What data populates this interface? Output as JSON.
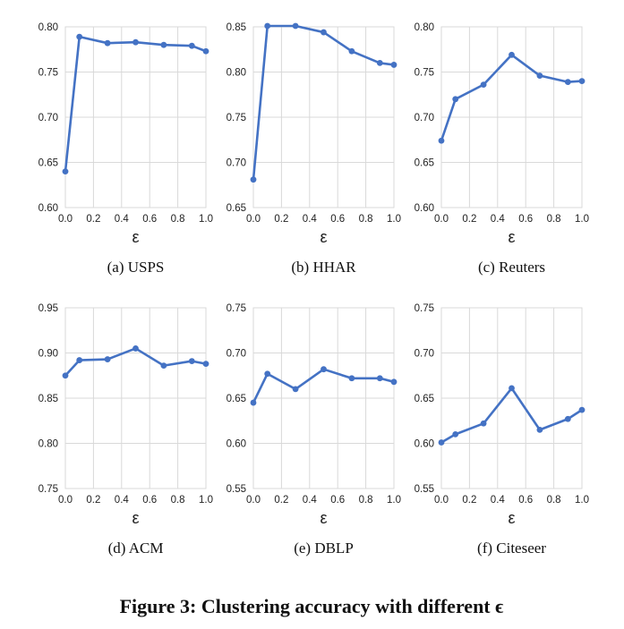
{
  "figure": {
    "caption": "Figure 3: Clustering accuracy with different ϵ"
  },
  "chart_data": [
    {
      "type": "line",
      "caption": "(a)  USPS",
      "xlabel": "ε",
      "x": [
        0.0,
        0.1,
        0.3,
        0.5,
        0.7,
        0.9,
        1.0
      ],
      "series": [
        {
          "values": [
            0.64,
            0.789,
            0.782,
            0.783,
            0.78,
            0.779,
            0.773
          ]
        }
      ],
      "xlim": [
        0.0,
        1.0
      ],
      "ylim": [
        0.6,
        0.8
      ],
      "yticks": [
        "0.60",
        "0.65",
        "0.70",
        "0.75",
        "0.80"
      ],
      "xticks": [
        "0.0",
        "0.2",
        "0.4",
        "0.6",
        "0.8",
        "1.0"
      ],
      "grid": true,
      "color": "#4472C4"
    },
    {
      "type": "line",
      "caption": "(b)  HHAR",
      "xlabel": "ε",
      "x": [
        0.0,
        0.1,
        0.3,
        0.5,
        0.7,
        0.9,
        1.0
      ],
      "series": [
        {
          "values": [
            0.681,
            0.851,
            0.851,
            0.844,
            0.823,
            0.81,
            0.808
          ]
        }
      ],
      "xlim": [
        0.0,
        1.0
      ],
      "ylim": [
        0.65,
        0.85
      ],
      "yticks": [
        "0.65",
        "0.70",
        "0.75",
        "0.80",
        "0.85"
      ],
      "xticks": [
        "0.0",
        "0.2",
        "0.4",
        "0.6",
        "0.8",
        "1.0"
      ],
      "grid": true,
      "color": "#4472C4"
    },
    {
      "type": "line",
      "caption": "(c)  Reuters",
      "xlabel": "ε",
      "x": [
        0.0,
        0.1,
        0.3,
        0.5,
        0.7,
        0.9,
        1.0
      ],
      "series": [
        {
          "values": [
            0.674,
            0.72,
            0.736,
            0.769,
            0.746,
            0.739,
            0.74
          ]
        }
      ],
      "xlim": [
        0.0,
        1.0
      ],
      "ylim": [
        0.6,
        0.8
      ],
      "yticks": [
        "0.60",
        "0.65",
        "0.70",
        "0.75",
        "0.80"
      ],
      "xticks": [
        "0.0",
        "0.2",
        "0.4",
        "0.6",
        "0.8",
        "1.0"
      ],
      "grid": true,
      "color": "#4472C4"
    },
    {
      "type": "line",
      "caption": "(d)  ACM",
      "xlabel": "ε",
      "x": [
        0.0,
        0.1,
        0.3,
        0.5,
        0.7,
        0.9,
        1.0
      ],
      "series": [
        {
          "values": [
            0.875,
            0.892,
            0.893,
            0.905,
            0.886,
            0.891,
            0.888
          ]
        }
      ],
      "xlim": [
        0.0,
        1.0
      ],
      "ylim": [
        0.75,
        0.95
      ],
      "yticks": [
        "0.75",
        "0.80",
        "0.85",
        "0.90",
        "0.95"
      ],
      "xticks": [
        "0.0",
        "0.2",
        "0.4",
        "0.6",
        "0.8",
        "1.0"
      ],
      "grid": true,
      "color": "#4472C4"
    },
    {
      "type": "line",
      "caption": "(e)  DBLP",
      "xlabel": "ε",
      "x": [
        0.0,
        0.1,
        0.3,
        0.5,
        0.7,
        0.9,
        1.0
      ],
      "series": [
        {
          "values": [
            0.645,
            0.677,
            0.66,
            0.682,
            0.672,
            0.672,
            0.668
          ]
        }
      ],
      "xlim": [
        0.0,
        1.0
      ],
      "ylim": [
        0.55,
        0.75
      ],
      "yticks": [
        "0.55",
        "0.60",
        "0.65",
        "0.70",
        "0.75"
      ],
      "xticks": [
        "0.0",
        "0.2",
        "0.4",
        "0.6",
        "0.8",
        "1.0"
      ],
      "grid": true,
      "color": "#4472C4"
    },
    {
      "type": "line",
      "caption": "(f)  Citeseer",
      "xlabel": "ε",
      "x": [
        0.0,
        0.1,
        0.3,
        0.5,
        0.7,
        0.9,
        1.0
      ],
      "series": [
        {
          "values": [
            0.601,
            0.61,
            0.622,
            0.661,
            0.615,
            0.627,
            0.637
          ]
        }
      ],
      "xlim": [
        0.0,
        1.0
      ],
      "ylim": [
        0.55,
        0.75
      ],
      "yticks": [
        "0.55",
        "0.60",
        "0.65",
        "0.70",
        "0.75"
      ],
      "xticks": [
        "0.0",
        "0.2",
        "0.4",
        "0.6",
        "0.8",
        "1.0"
      ],
      "grid": true,
      "color": "#4472C4"
    }
  ]
}
